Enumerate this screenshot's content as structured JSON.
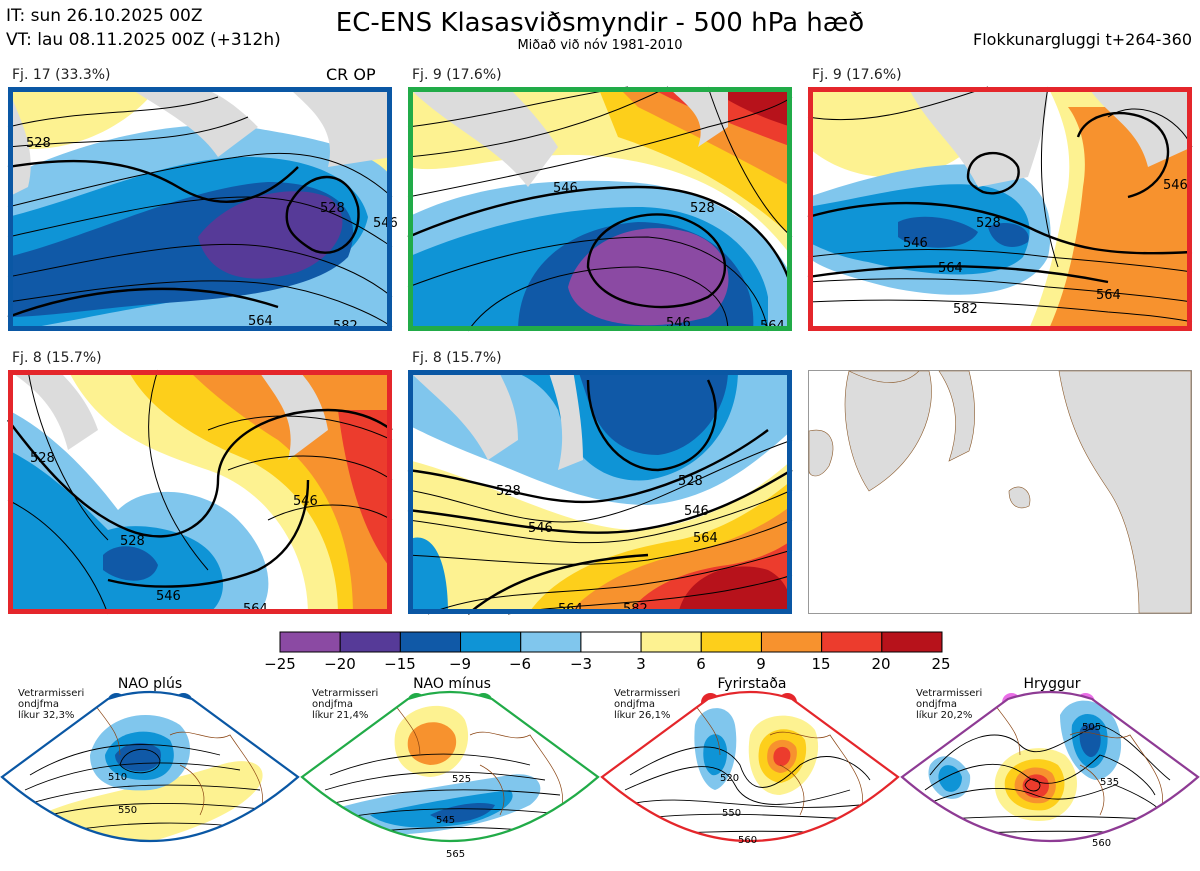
{
  "header": {
    "it_line": "IT: sun 26.10.2025 00Z",
    "vt_line": "VT: lau 08.11.2025 00Z  (+312h)",
    "title": "EC-ENS Klasasviðsmyndir - 500 hPa hæð",
    "subtitle": "Miðað við nóv 1981-2010",
    "window": "Flokkunargluggi t+264-360"
  },
  "clusters": [
    {
      "label": "Fj. 17 (33.3%)",
      "frame_color": "#0a57a4",
      "extra": "CR OP",
      "contours": [
        "528",
        "546",
        "564",
        "528",
        "582"
      ]
    },
    {
      "label": "Fj. 9 (17.6%)",
      "frame_color": "#21ab48",
      "contours": [
        "546",
        "528",
        "546",
        "564"
      ]
    },
    {
      "label": "Fj. 9 (17.6%)",
      "frame_color": "#e4262b",
      "contours": [
        "528",
        "546",
        "546",
        "564",
        "564",
        "582"
      ]
    },
    {
      "label": "Fj. 8 (15.7%)",
      "frame_color": "#e4262b",
      "contours": [
        "528",
        "528",
        "546",
        "546",
        "564"
      ]
    },
    {
      "label": "Fj. 8 (15.7%)",
      "frame_color": "#0a57a4",
      "contours": [
        "528",
        "528",
        "546",
        "546",
        "564",
        "564",
        "582"
      ]
    }
  ],
  "colorbar": {
    "labels": [
      "−25",
      "−20",
      "−15",
      "−9",
      "−6",
      "−3",
      "3",
      "6",
      "9",
      "15",
      "20",
      "25"
    ],
    "colors": [
      "#8b4aa3",
      "#563a98",
      "#1059a7",
      "#0f94d6",
      "#80c6ed",
      "#ffffff",
      "#fdf291",
      "#fdcf1b",
      "#f7922e",
      "#ec3c2d",
      "#b7121b"
    ]
  },
  "regimes": [
    {
      "title": "NAO plús",
      "note": [
        "Vetrarmisseri",
        "ondjfma",
        "líkur 32,3%"
      ],
      "color": "#0a57a4",
      "contours": [
        "510",
        "550"
      ]
    },
    {
      "title": "NAO mínus",
      "note": [
        "Vetrarmisseri",
        "ondjfma",
        "líkur 21,4%"
      ],
      "color": "#21ab48",
      "contours": [
        "525",
        "545",
        "565"
      ]
    },
    {
      "title": "Fyrirstaða",
      "note": [
        "Vetrarmisseri",
        "ondjfma",
        "líkur 26,1%"
      ],
      "color": "#e4262b",
      "contours": [
        "520",
        "550",
        "560"
      ]
    },
    {
      "title": "Hryggur",
      "note": [
        "Vetrarmisseri",
        "ondjfma",
        "líkur 20,2%"
      ],
      "color": "#8e3b94",
      "dot_color": "#ea6ee7",
      "contours": [
        "505",
        "535",
        "560"
      ]
    }
  ]
}
